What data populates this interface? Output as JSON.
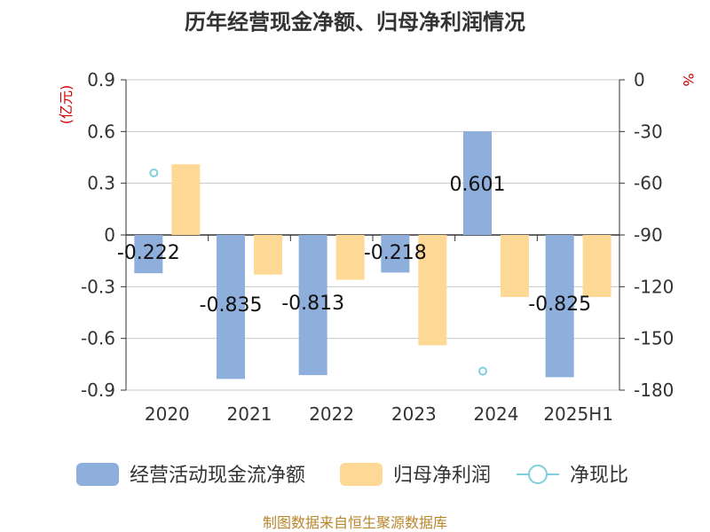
{
  "title": "历年经营现金净额、归母净利润情况",
  "source": "制图数据来自恒生聚源数据库",
  "chart_data": {
    "type": "bar",
    "categories": [
      "2020",
      "2021",
      "2022",
      "2023",
      "2024",
      "2025H1"
    ],
    "left_axis": {
      "unit": "(亿元)",
      "ylim": [
        -0.9,
        0.9
      ],
      "ticks": [
        "0.9",
        "0.6",
        "0.3",
        "0",
        "-0.3",
        "-0.6",
        "-0.9"
      ]
    },
    "right_axis": {
      "unit": "%",
      "ylim": [
        -180,
        0
      ],
      "ticks": [
        "0",
        "-30",
        "-60",
        "-90",
        "-120",
        "-150",
        "-180"
      ]
    },
    "series": [
      {
        "name": "经营活动现金流净额",
        "type": "bar",
        "axis": "left",
        "color": "#8eaedc",
        "values": [
          -0.222,
          -0.835,
          -0.813,
          -0.218,
          0.601,
          -0.825
        ],
        "labels": [
          "-0.222",
          "-0.835",
          "-0.813",
          "-0.218",
          "0.601",
          "-0.825"
        ]
      },
      {
        "name": "归母净利润",
        "type": "bar",
        "axis": "left",
        "color": "#fdd995",
        "values": [
          0.41,
          -0.23,
          -0.26,
          -0.64,
          -0.36,
          -0.36
        ]
      },
      {
        "name": "净现比",
        "type": "scatter",
        "axis": "right",
        "color": "#7fd0dc",
        "values": [
          -54,
          null,
          null,
          null,
          -169,
          null
        ]
      }
    ],
    "grid": true,
    "legend_position": "bottom"
  }
}
